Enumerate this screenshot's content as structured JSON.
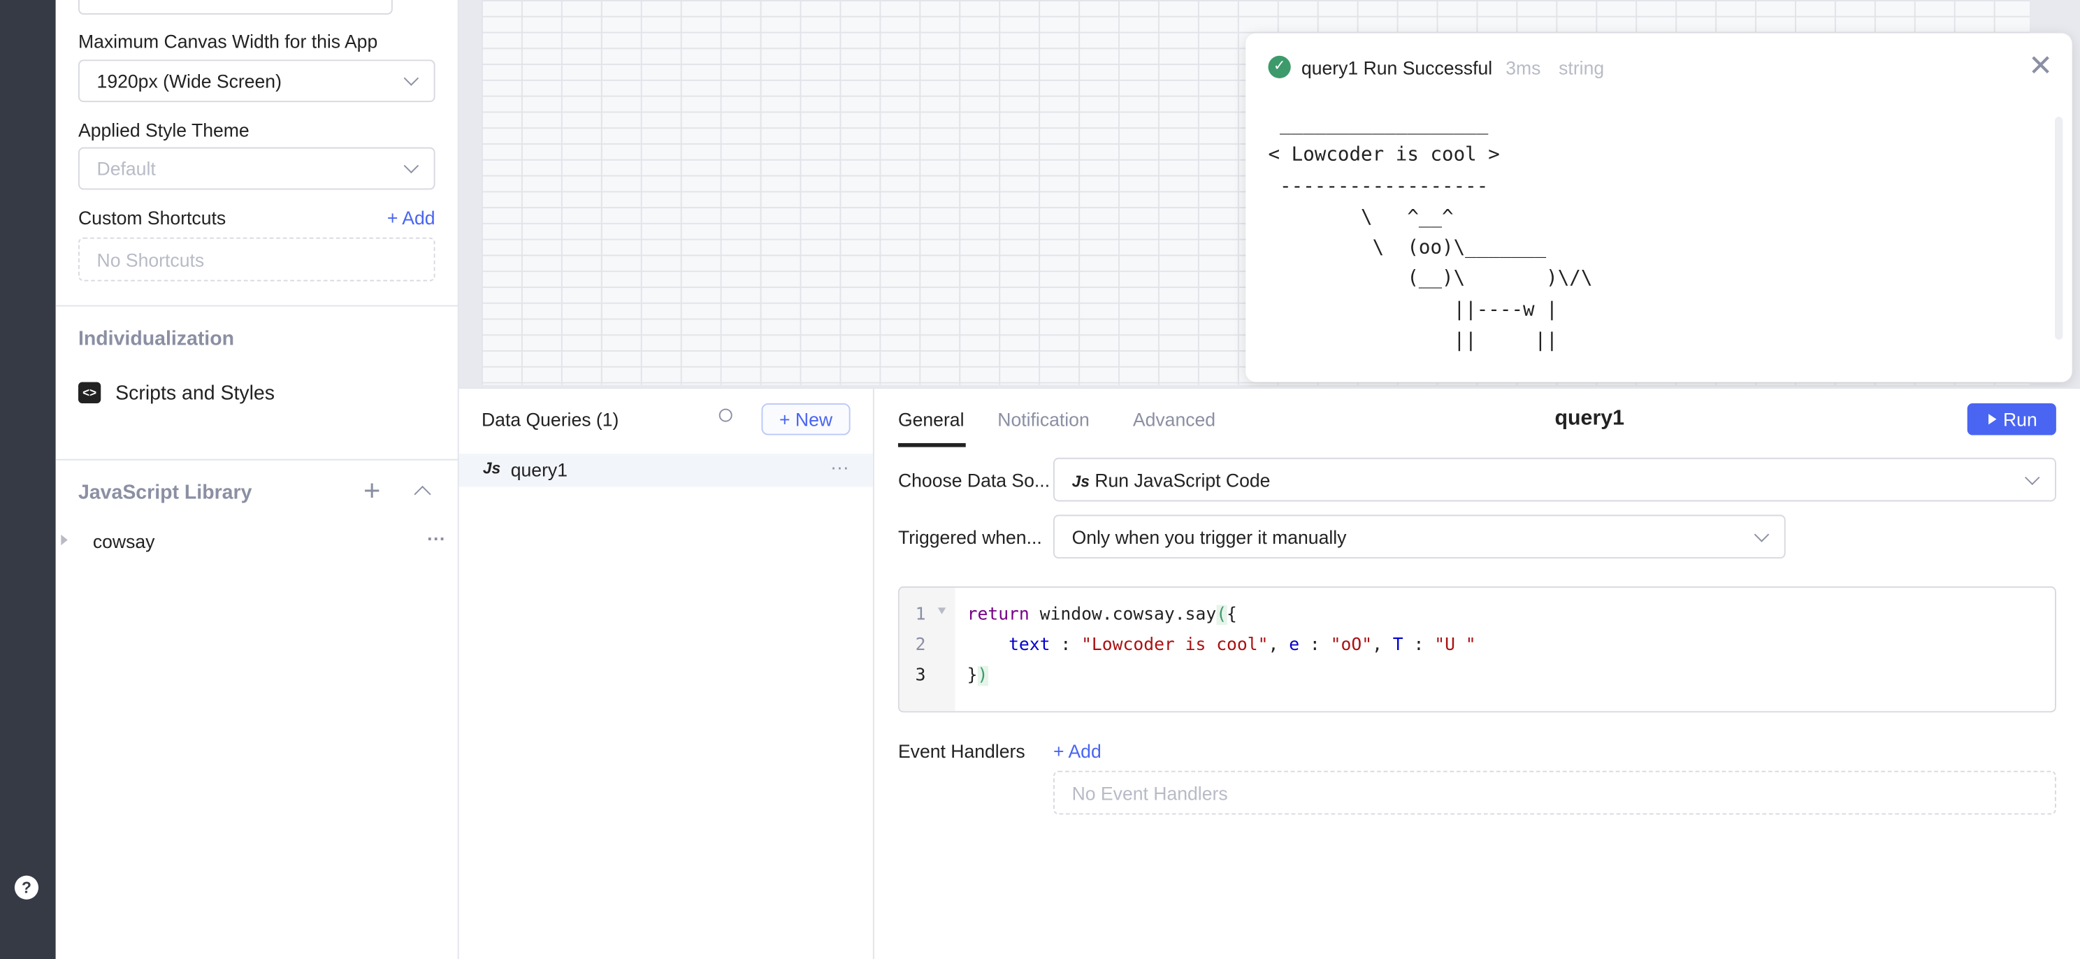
{
  "left_panel": {
    "canvas_width_label": "Maximum Canvas Width for this App",
    "canvas_width_value": "1920px (Wide Screen)",
    "theme_label": "Applied Style Theme",
    "theme_placeholder": "Default",
    "shortcuts_label": "Custom Shortcuts",
    "shortcuts_add": "+ Add",
    "shortcuts_empty": "No Shortcuts",
    "individualization": "Individualization",
    "scripts_styles": "Scripts and Styles",
    "js_library": "JavaScript Library",
    "libraries": [
      "cowsay"
    ]
  },
  "toast": {
    "title": "query1 Run Successful",
    "duration": "3ms",
    "type": "string",
    "output": " __________________\n< Lowcoder is cool >\n ------------------\n        \\   ^__^\n         \\  (oo)\\_______\n            (__)\\       )\\/\\\n                ||----w |\n                ||     ||",
    "success_color": "#3d9a6b"
  },
  "queries": {
    "title": "Data Queries (1)",
    "new_button": "+ New",
    "items": [
      {
        "name": "query1",
        "icon": "js-icon"
      }
    ]
  },
  "editor": {
    "tabs": [
      "General",
      "Notification",
      "Advanced"
    ],
    "active_tab": "General",
    "query_name": "query1",
    "run_button": "Run",
    "datasource_label": "Choose Data So...",
    "datasource_value": "Run JavaScript Code",
    "trigger_label": "Triggered when...",
    "trigger_value": "Only when you trigger it manually",
    "code_lines": [
      "1",
      "2",
      "3"
    ],
    "code": {
      "l1_kw": "return",
      "l1_rest": " window.cowsay.say",
      "l1_paren": "(",
      "l1_brace": "{",
      "l2_k1": "text",
      "l2_s1": "\"Lowcoder is cool\"",
      "l2_k2": "e",
      "l2_s2": "\"oO\"",
      "l2_k3": "T",
      "l2_s3": "\"U \"",
      "l3_brace": "}",
      "l3_paren": ")"
    },
    "event_handlers_label": "Event Handlers",
    "event_handlers_add": "+ Add",
    "event_handlers_empty": "No Event Handlers",
    "accent_color": "#4965f2"
  }
}
